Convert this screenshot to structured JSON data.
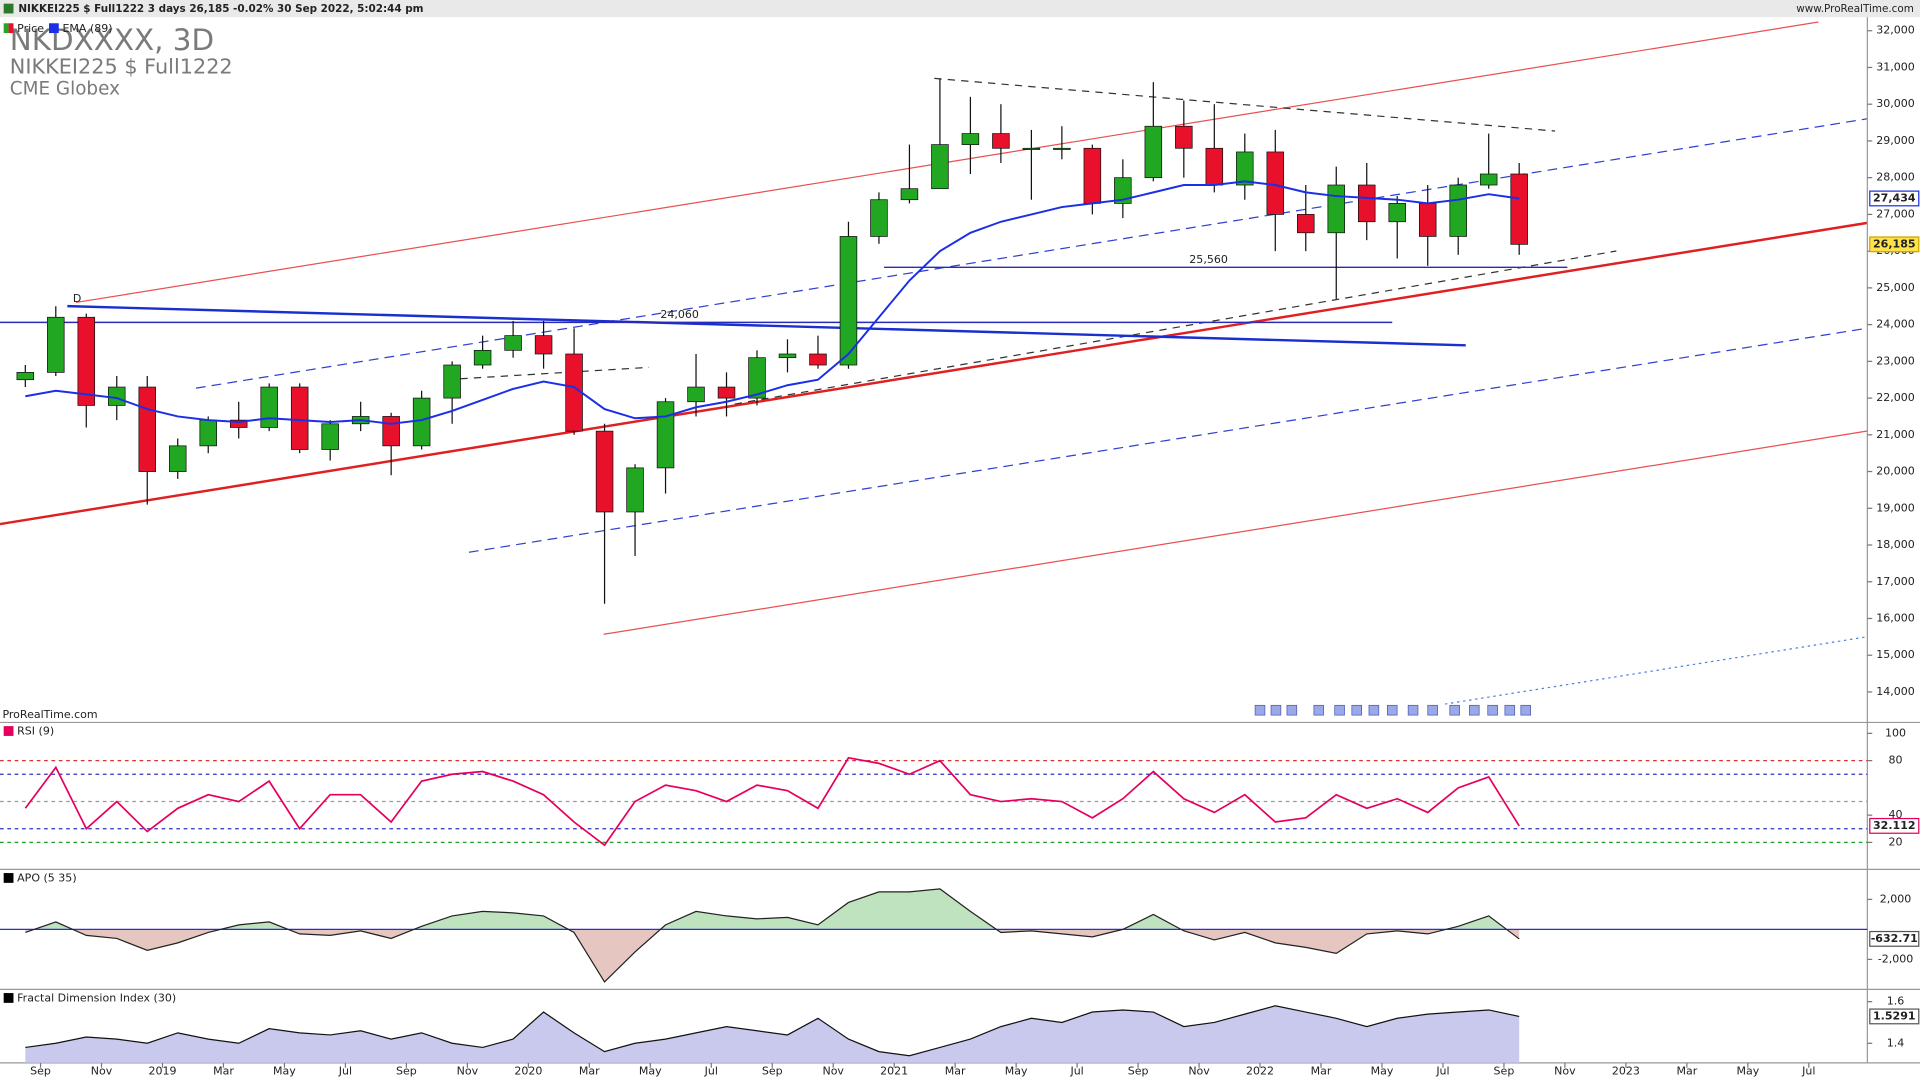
{
  "header": {
    "title": "NIKKEI225 $ Full1222 3 days 26,185 -0.02% 30 Sep 2022, 5:02:44 pm",
    "site": "www.ProRealTime.com"
  },
  "watermark": {
    "symbol": "NKDXXXX, 3D",
    "name": "NIKKEI225 $ Full1222",
    "exchange": "CME Globex"
  },
  "credit": "ProRealTime.com",
  "chart_data": [
    {
      "type": "candlestick",
      "annotation": "D",
      "x": [
        -0.5,
        0.5,
        1.5,
        2.5,
        3.5,
        4.5,
        5.5,
        6.5,
        7.5,
        8.5,
        9.5,
        10.5,
        11.5,
        12.5,
        13.5,
        14.5,
        15.5,
        16.5,
        17.5,
        18.5,
        19.5,
        20.5,
        21.5,
        22.5,
        23.5,
        24.5,
        25.5,
        26.5,
        27.5,
        28.5,
        29.5,
        30.5,
        31.5,
        32.5,
        33.5,
        34.5,
        35.5,
        36.5,
        37.5,
        38.5,
        39.5,
        40.5,
        41.5,
        42.5,
        43.5,
        44.5,
        45.5,
        46.5,
        47.5,
        48.5
      ],
      "price": {
        "name": "Price",
        "color_up": "#22a722",
        "color_down": "#e8102a",
        "last_label": "26,185",
        "open": [
          22500,
          22700,
          24200,
          21800,
          22300,
          20000,
          20700,
          21400,
          21200,
          22300,
          20600,
          21300,
          21500,
          20700,
          22000,
          22900,
          23300,
          23700,
          23200,
          21100,
          18900,
          20100,
          21900,
          22300,
          22000,
          23100,
          23200,
          22900,
          26400,
          27400,
          27700,
          28900,
          29200,
          28800,
          28800,
          28800,
          27300,
          28000,
          29400,
          28800,
          27800,
          28700,
          27000,
          26500,
          27800,
          26800,
          27300,
          26400,
          27800,
          28100
        ],
        "high": [
          22900,
          24500,
          24300,
          22600,
          22600,
          20900,
          21500,
          21900,
          22400,
          22400,
          21400,
          21900,
          21600,
          22200,
          23000,
          23700,
          24100,
          24100,
          23900,
          21300,
          20200,
          22000,
          23200,
          22700,
          23300,
          23600,
          23700,
          26800,
          27600,
          28900,
          30700,
          30200,
          30000,
          29300,
          29400,
          28900,
          28500,
          30600,
          30100,
          30000,
          29200,
          29300,
          27800,
          28300,
          28400,
          27500,
          27800,
          28000,
          29200,
          28400
        ],
        "low": [
          22300,
          22600,
          21200,
          21400,
          19100,
          19800,
          20500,
          20900,
          21100,
          20500,
          20300,
          21100,
          19900,
          20600,
          21300,
          22800,
          23100,
          22800,
          21000,
          16400,
          17700,
          19400,
          21500,
          21500,
          21800,
          22700,
          22800,
          22800,
          26200,
          27300,
          27700,
          28100,
          28400,
          27400,
          28500,
          27000,
          26900,
          27900,
          28000,
          27600,
          27400,
          26000,
          26000,
          24700,
          26300,
          25800,
          25600,
          25900,
          27700,
          25900
        ],
        "close": [
          22700,
          24200,
          21800,
          22300,
          20000,
          20700,
          21400,
          21200,
          22300,
          20600,
          21300,
          21500,
          20700,
          22000,
          22900,
          23300,
          23700,
          23200,
          21100,
          18900,
          20100,
          21900,
          22300,
          22000,
          23100,
          23200,
          22900,
          26400,
          27400,
          27700,
          28900,
          29200,
          28800,
          28800,
          28800,
          27300,
          28000,
          29400,
          28800,
          27800,
          28700,
          27000,
          26500,
          27800,
          26800,
          27300,
          26400,
          27800,
          28100,
          26185
        ]
      },
      "ema": {
        "name": "EMA (89)",
        "color": "#1a2fe6",
        "last_label": "27,434",
        "values": [
          22050,
          22200,
          22100,
          22000,
          21700,
          21500,
          21400,
          21350,
          21450,
          21400,
          21350,
          21400,
          21300,
          21400,
          21650,
          21950,
          22250,
          22450,
          22300,
          21700,
          21450,
          21500,
          21750,
          21900,
          22100,
          22350,
          22500,
          23200,
          24200,
          25200,
          26000,
          26500,
          26800,
          27000,
          27200,
          27300,
          27400,
          27600,
          27800,
          27800,
          27900,
          27800,
          27600,
          27500,
          27450,
          27400,
          27300,
          27400,
          27550,
          27434
        ]
      },
      "hlines": [
        {
          "value": 25560,
          "label": "25,560",
          "color": "#2a2ab8"
        },
        {
          "value": 24060,
          "label": "24,060",
          "color": "#2a2ab8"
        }
      ],
      "xlim": [
        -1.33,
        59.92
      ],
      "xticks": [
        {
          "value": 0,
          "label": "Sep"
        },
        {
          "value": 2,
          "label": "Nov"
        },
        {
          "value": 4,
          "label": "2019"
        },
        {
          "value": 6,
          "label": "Mar"
        },
        {
          "value": 8,
          "label": "May"
        },
        {
          "value": 10,
          "label": "Jul"
        },
        {
          "value": 12,
          "label": "Sep"
        },
        {
          "value": 14,
          "label": "Nov"
        },
        {
          "value": 16,
          "label": "2020"
        },
        {
          "value": 18,
          "label": "Mar"
        },
        {
          "value": 20,
          "label": "May"
        },
        {
          "value": 22,
          "label": "Jul"
        },
        {
          "value": 24,
          "label": "Sep"
        },
        {
          "value": 26,
          "label": "Nov"
        },
        {
          "value": 28,
          "label": "2021"
        },
        {
          "value": 30,
          "label": "Mar"
        },
        {
          "value": 32,
          "label": "May"
        },
        {
          "value": 34,
          "label": "Jul"
        },
        {
          "value": 36,
          "label": "Sep"
        },
        {
          "value": 38,
          "label": "Nov"
        },
        {
          "value": 40,
          "label": "2022"
        },
        {
          "value": 42,
          "label": "Mar"
        },
        {
          "value": 44,
          "label": "May"
        },
        {
          "value": 46,
          "label": "Jul"
        },
        {
          "value": 48,
          "label": "Sep"
        },
        {
          "value": 50,
          "label": "Nov"
        },
        {
          "value": 52,
          "label": "2023"
        },
        {
          "value": 54,
          "label": "Mar"
        },
        {
          "value": 56,
          "label": "May"
        },
        {
          "value": 58,
          "label": "Jul"
        }
      ],
      "ylim": [
        13170,
        32370
      ],
      "yticks": [
        {
          "value": 14000,
          "label": "14,000"
        },
        {
          "value": 15000,
          "label": "15,000"
        },
        {
          "value": 16000,
          "label": "16,000"
        },
        {
          "value": 17000,
          "label": "17,000"
        },
        {
          "value": 18000,
          "label": "18,000"
        },
        {
          "value": 19000,
          "label": "19,000"
        },
        {
          "value": 20000,
          "label": "20,000"
        },
        {
          "value": 21000,
          "label": "21,000"
        },
        {
          "value": 22000,
          "label": "22,000"
        },
        {
          "value": 23000,
          "label": "23,000"
        },
        {
          "value": 24000,
          "label": "24,000"
        },
        {
          "value": 25000,
          "label": "25,000"
        },
        {
          "value": 26000,
          "label": "26,000"
        },
        {
          "value": 27000,
          "label": "27,000"
        },
        {
          "value": 28000,
          "label": "28,000"
        },
        {
          "value": 29000,
          "label": "29,000"
        },
        {
          "value": 30000,
          "label": "30,000"
        },
        {
          "value": 31000,
          "label": "31,000"
        },
        {
          "value": 32000,
          "label": "32,000"
        }
      ]
    },
    {
      "type": "line",
      "title": "RSI (9)",
      "color": "#e6005c",
      "x": [
        -0.5,
        0.5,
        1.5,
        2.5,
        3.5,
        4.5,
        5.5,
        6.5,
        7.5,
        8.5,
        9.5,
        10.5,
        11.5,
        12.5,
        13.5,
        14.5,
        15.5,
        16.5,
        17.5,
        18.5,
        19.5,
        20.5,
        21.5,
        22.5,
        23.5,
        24.5,
        25.5,
        26.5,
        27.5,
        28.5,
        29.5,
        30.5,
        31.5,
        32.5,
        33.5,
        34.5,
        35.5,
        36.5,
        37.5,
        38.5,
        39.5,
        40.5,
        41.5,
        42.5,
        43.5,
        44.5,
        45.5,
        46.5,
        47.5,
        48.5
      ],
      "values": [
        45,
        75,
        30,
        50,
        28,
        45,
        55,
        50,
        65,
        30,
        55,
        55,
        35,
        65,
        70,
        72,
        65,
        55,
        35,
        18,
        50,
        62,
        58,
        50,
        62,
        58,
        45,
        82,
        78,
        70,
        80,
        55,
        50,
        52,
        50,
        38,
        52,
        72,
        52,
        42,
        55,
        35,
        38,
        55,
        45,
        52,
        42,
        60,
        68,
        32.112
      ],
      "levels": [
        {
          "value": 80,
          "color": "#e03030"
        },
        {
          "value": 70,
          "color": "#3030c0"
        },
        {
          "value": 50,
          "color": "#999999"
        },
        {
          "value": 30,
          "color": "#3030c0"
        },
        {
          "value": 20,
          "color": "#20a020"
        }
      ],
      "ylim": [
        0.2,
        108
      ],
      "yticks": [
        20,
        40,
        80,
        100
      ]
    },
    {
      "type": "area",
      "title": "APO (5 35)",
      "color": "#222222",
      "fill_up": "#bfe3bf",
      "fill_down": "#e6c6c0",
      "zero_color": "#2a2ae0",
      "x": [
        -0.5,
        0.5,
        1.5,
        2.5,
        3.5,
        4.5,
        5.5,
        6.5,
        7.5,
        8.5,
        9.5,
        10.5,
        11.5,
        12.5,
        13.5,
        14.5,
        15.5,
        16.5,
        17.5,
        18.5,
        19.5,
        20.5,
        21.5,
        22.5,
        23.5,
        24.5,
        25.5,
        26.5,
        27.5,
        28.5,
        29.5,
        30.5,
        31.5,
        32.5,
        33.5,
        34.5,
        35.5,
        36.5,
        37.5,
        38.5,
        39.5,
        40.5,
        41.5,
        42.5,
        43.5,
        44.5,
        45.5,
        46.5,
        47.5,
        48.5
      ],
      "values": [
        -200,
        500,
        -400,
        -600,
        -1400,
        -900,
        -200,
        300,
        500,
        -300,
        -400,
        -100,
        -600,
        200,
        900,
        1200,
        1100,
        900,
        -200,
        -3500,
        -1500,
        300,
        1200,
        900,
        700,
        800,
        300,
        1800,
        2500,
        2500,
        2700,
        1200,
        -200,
        -100,
        -300,
        -500,
        0,
        1000,
        -100,
        -700,
        -200,
        -900,
        -1200,
        -1600,
        -300,
        -100,
        -300,
        200,
        900,
        -632.71
      ],
      "ylim": [
        -4000,
        4000
      ],
      "yticks": [
        {
          "value": 2000,
          "label": "2,000"
        },
        {
          "value": -2000,
          "label": "-2,000"
        }
      ]
    },
    {
      "type": "area",
      "title": "Fractal Dimension Index (30)",
      "color": "#111111",
      "fill_up": "#c9c9ee",
      "fill_down": "#c9c9ee",
      "x": [
        -0.5,
        0.5,
        1.5,
        2.5,
        3.5,
        4.5,
        5.5,
        6.5,
        7.5,
        8.5,
        9.5,
        10.5,
        11.5,
        12.5,
        13.5,
        14.5,
        15.5,
        16.5,
        17.5,
        18.5,
        19.5,
        20.5,
        21.5,
        22.5,
        23.5,
        24.5,
        25.5,
        26.5,
        27.5,
        28.5,
        29.5,
        30.5,
        31.5,
        32.5,
        33.5,
        34.5,
        35.5,
        36.5,
        37.5,
        38.5,
        39.5,
        40.5,
        41.5,
        42.5,
        43.5,
        44.5,
        45.5,
        46.5,
        47.5,
        48.5
      ],
      "values": [
        1.38,
        1.4,
        1.43,
        1.42,
        1.4,
        1.45,
        1.42,
        1.4,
        1.47,
        1.45,
        1.44,
        1.46,
        1.42,
        1.45,
        1.4,
        1.38,
        1.42,
        1.55,
        1.45,
        1.36,
        1.4,
        1.42,
        1.45,
        1.48,
        1.46,
        1.44,
        1.52,
        1.42,
        1.36,
        1.34,
        1.38,
        1.42,
        1.48,
        1.52,
        1.5,
        1.55,
        1.56,
        1.55,
        1.48,
        1.5,
        1.54,
        1.58,
        1.55,
        1.52,
        1.48,
        1.52,
        1.54,
        1.55,
        1.56,
        1.5291
      ],
      "ylim": [
        1.306,
        1.659
      ],
      "yticks": [
        1.6,
        1.4
      ]
    }
  ]
}
